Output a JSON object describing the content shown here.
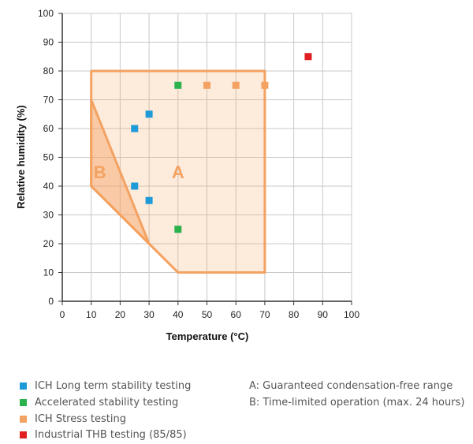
{
  "chart_data": {
    "type": "scatter",
    "xlabel": "Temperature (°C)",
    "ylabel": "Relative humidity (%)",
    "xlim": [
      0,
      100
    ],
    "ylim": [
      0,
      100
    ],
    "x_ticks": [
      "0",
      "10",
      "20",
      "30",
      "40",
      "50",
      "60",
      "70",
      "80",
      "90",
      "100"
    ],
    "y_ticks": [
      "0",
      "10",
      "20",
      "30",
      "40",
      "50",
      "60",
      "70",
      "80",
      "90",
      "100"
    ],
    "grid": true,
    "regions": [
      {
        "label": "A",
        "label_at": [
          40,
          45
        ],
        "color": "#f4a261",
        "polygon": [
          [
            10,
            80
          ],
          [
            70,
            80
          ],
          [
            70,
            10
          ],
          [
            40,
            10
          ],
          [
            30,
            20
          ],
          [
            10,
            40
          ]
        ]
      },
      {
        "label": "B",
        "label_at": [
          13,
          45
        ],
        "color": "#f4a261",
        "polygon": [
          [
            10,
            70
          ],
          [
            30,
            20
          ],
          [
            20,
            30
          ],
          [
            10,
            40
          ]
        ]
      }
    ],
    "series": [
      {
        "name": "ICH Long term stability testing",
        "color": "#1e9bd7",
        "points": [
          [
            25,
            60
          ],
          [
            30,
            65
          ],
          [
            25,
            40
          ],
          [
            30,
            35
          ]
        ]
      },
      {
        "name": "Accelerated stability testing",
        "color": "#2bb24c",
        "points": [
          [
            40,
            75
          ],
          [
            40,
            25
          ]
        ]
      },
      {
        "name": "ICH Stress testing",
        "color": "#f4a261",
        "points": [
          [
            50,
            75
          ],
          [
            60,
            75
          ],
          [
            70,
            75
          ]
        ]
      },
      {
        "name": "Industrial THB testing (85/85)",
        "color": "#e02020",
        "points": [
          [
            85,
            85
          ]
        ]
      }
    ]
  },
  "notes": [
    "A: Guaranteed condensation-free range",
    "B: Time-limited operation (max. 24 hours)"
  ]
}
